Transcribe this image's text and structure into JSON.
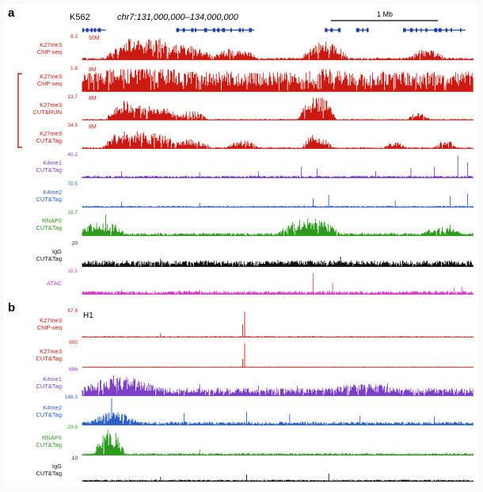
{
  "panel_a": {
    "letter": "a",
    "cell_line": "K562",
    "locus": "chr7:131,000,000–134,000,000",
    "scalebar_label": "1 Mb",
    "tracks": [
      {
        "label_lines": [
          "K27me3",
          "ChIP-seq"
        ],
        "scale": "8.3",
        "inner_label": "50M",
        "color": "#cc1a12",
        "profile": "k27_chip_50m"
      },
      {
        "label_lines": [
          "K27me3",
          "ChIP-seq"
        ],
        "scale": "1.8",
        "inner_label": "8M",
        "color": "#cc1a12",
        "profile": "k27_chip_8m"
      },
      {
        "label_lines": [
          "K27me3",
          "CUT&RUN"
        ],
        "scale": "13.7",
        "inner_label": "8M",
        "color": "#cc1a12",
        "profile": "k27_cutrun"
      },
      {
        "label_lines": [
          "K27me3",
          "CUT&Tag"
        ],
        "scale": "34.5",
        "inner_label": "8M",
        "color": "#cc1a12",
        "profile": "k27_cuttag"
      },
      {
        "label_lines": [
          "K4me1",
          "CUT&Tag"
        ],
        "scale": "40.2",
        "inner_label": "",
        "color": "#7d3fc6",
        "profile": "k4me1"
      },
      {
        "label_lines": [
          "K4me2",
          "CUT&Tag"
        ],
        "scale": "70.5",
        "inner_label": "",
        "color": "#2a62c8",
        "profile": "k4me2"
      },
      {
        "label_lines": [
          "RNAPII",
          "CUT&Tag"
        ],
        "scale": "15.7",
        "inner_label": "",
        "color": "#2e9a1e",
        "profile": "rnapii"
      },
      {
        "label_lines": [
          "IgG",
          "CUT&Tag"
        ],
        "scale": "20",
        "inner_label": "",
        "color": "#111111",
        "profile": "igg"
      },
      {
        "label_lines": [
          "ATAC"
        ],
        "scale": "18.5",
        "inner_label": "",
        "color": "#d43fc4",
        "profile": "atac"
      }
    ]
  },
  "panel_b": {
    "letter": "b",
    "cell_line": "H1",
    "tracks": [
      {
        "label_lines": [
          "K27me3",
          "ChIP-seq"
        ],
        "scale": "67.9",
        "inner_label": "",
        "color": "#cc1a12",
        "profile": "h1_k27_chip"
      },
      {
        "label_lines": [
          "K27me3",
          "CUT&Tag"
        ],
        "scale": "900",
        "inner_label": "",
        "color": "#cc1a12",
        "profile": "h1_k27_cuttag"
      },
      {
        "label_lines": [
          "K4me1",
          "CUT&Tag"
        ],
        "scale": "686",
        "inner_label": "",
        "color": "#7d3fc6",
        "profile": "h1_k4me1"
      },
      {
        "label_lines": [
          "K4me2",
          "CUT&Tag"
        ],
        "scale": "148.3",
        "inner_label": "",
        "color": "#2a62c8",
        "profile": "h1_k4me2"
      },
      {
        "label_lines": [
          "RNAPII",
          "CUT&Tag"
        ],
        "scale": "29.9",
        "inner_label": "",
        "color": "#2e9a1e",
        "profile": "h1_rnapii"
      },
      {
        "label_lines": [
          "IgG",
          "CUT&Tag"
        ],
        "scale": "10",
        "inner_label": "",
        "color": "#111111",
        "profile": "h1_igg"
      }
    ]
  },
  "gene_track_color": "#1f3fb0"
}
